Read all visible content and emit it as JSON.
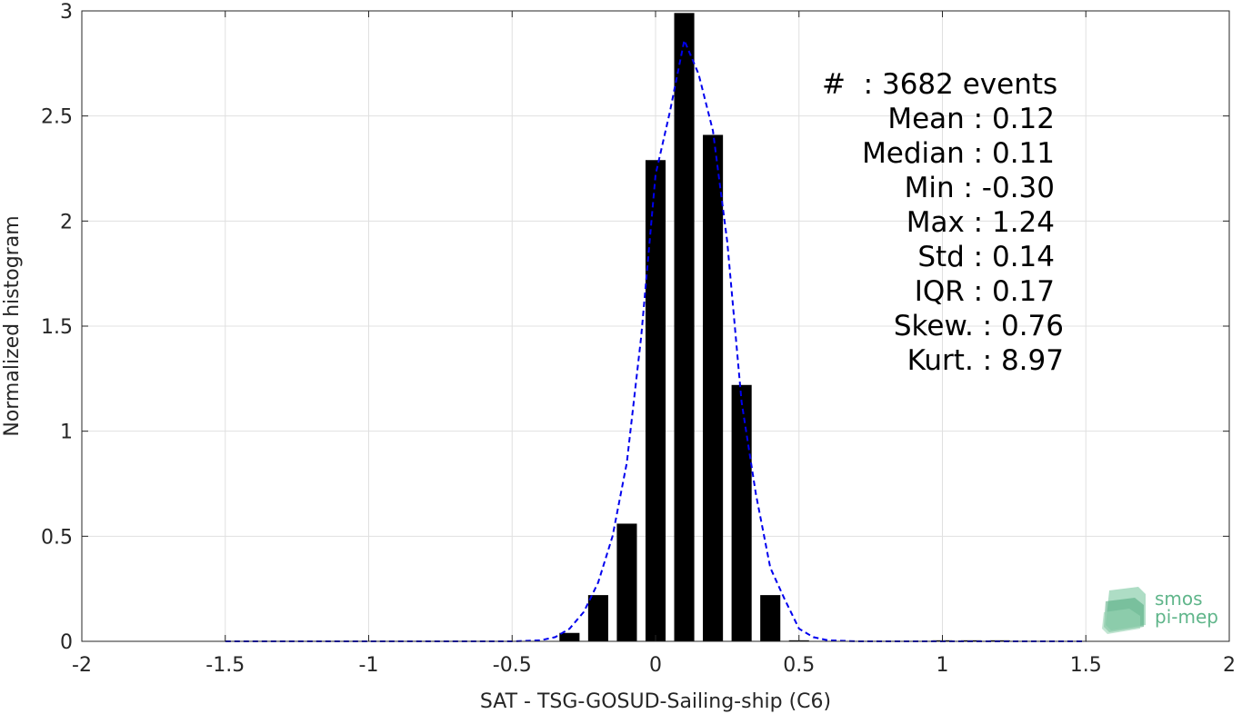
{
  "chart_data": {
    "type": "bar",
    "xlabel": "SAT - TSG-GOSUD-Sailing-ship (C6)",
    "ylabel": "Normalized histogram",
    "xlim": [
      -2,
      2
    ],
    "ylim": [
      0,
      3
    ],
    "grid": true,
    "xticks": [
      "-2",
      "-1.5",
      "-1",
      "-0.5",
      "0",
      "0.5",
      "1",
      "1.5",
      "2"
    ],
    "yticks": [
      "0",
      "0.5",
      "1",
      "1.5",
      "2",
      "2.5",
      "3"
    ],
    "bar_color": "#000000",
    "bar_width": 0.07,
    "bars": [
      {
        "x": -0.3,
        "y": 0.04
      },
      {
        "x": -0.2,
        "y": 0.22
      },
      {
        "x": -0.1,
        "y": 0.56
      },
      {
        "x": 0.0,
        "y": 2.29
      },
      {
        "x": 0.1,
        "y": 2.99
      },
      {
        "x": 0.2,
        "y": 2.41
      },
      {
        "x": 0.3,
        "y": 1.22
      },
      {
        "x": 0.4,
        "y": 0.22
      },
      {
        "x": 0.5,
        "y": 0.005
      },
      {
        "x": 1.0,
        "y": 0.005
      },
      {
        "x": 1.1,
        "y": 0.005
      },
      {
        "x": 1.2,
        "y": 0.005
      }
    ],
    "fit_curve": {
      "style": "dashed",
      "color": "#0000ee",
      "x": [
        -1.5,
        -1.4,
        -1.3,
        -1.2,
        -1.1,
        -1.0,
        -0.9,
        -0.8,
        -0.7,
        -0.6,
        -0.5,
        -0.4,
        -0.35,
        -0.3,
        -0.25,
        -0.2,
        -0.15,
        -0.1,
        -0.05,
        0.0,
        0.05,
        0.1,
        0.15,
        0.2,
        0.25,
        0.3,
        0.35,
        0.4,
        0.45,
        0.5,
        0.55,
        0.6,
        0.7,
        0.8,
        0.9,
        1.0,
        1.1,
        1.2,
        1.3,
        1.4,
        1.5
      ],
      "y": [
        0,
        0,
        0,
        0,
        0,
        0,
        0,
        0,
        0,
        0,
        0,
        0.005,
        0.02,
        0.06,
        0.14,
        0.28,
        0.5,
        0.85,
        1.45,
        2.22,
        2.52,
        2.86,
        2.7,
        2.43,
        1.9,
        1.14,
        0.7,
        0.35,
        0.2,
        0.06,
        0.02,
        0.005,
        0,
        0,
        0,
        0,
        0,
        0,
        0,
        0,
        0
      ]
    }
  },
  "stats": [
    "#  : 3682 events",
    "Mean : 0.12",
    "Median : 0.11",
    "Min : -0.30",
    "Max : 1.24",
    "Std : 0.14",
    "IQR : 0.17",
    "Skew. : 0.76",
    "Kurt. : 8.97"
  ],
  "logo": {
    "line1": "smos",
    "line2": "pi-mep",
    "color": "#5fb58a"
  }
}
